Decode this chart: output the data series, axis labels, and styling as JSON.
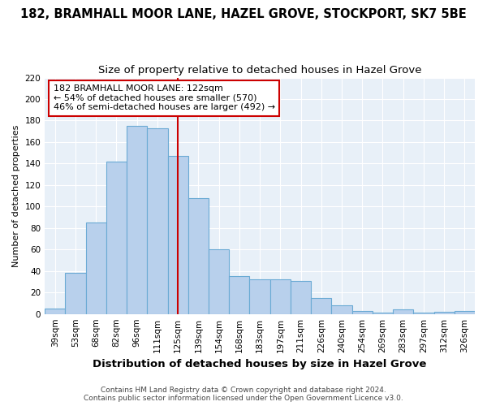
{
  "title": "182, BRAMHALL MOOR LANE, HAZEL GROVE, STOCKPORT, SK7 5BE",
  "subtitle": "Size of property relative to detached houses in Hazel Grove",
  "xlabel": "Distribution of detached houses by size in Hazel Grove",
  "ylabel": "Number of detached properties",
  "footer_line1": "Contains HM Land Registry data © Crown copyright and database right 2024.",
  "footer_line2": "Contains public sector information licensed under the Open Government Licence v3.0.",
  "categories": [
    "39sqm",
    "53sqm",
    "68sqm",
    "82sqm",
    "96sqm",
    "111sqm",
    "125sqm",
    "139sqm",
    "154sqm",
    "168sqm",
    "183sqm",
    "197sqm",
    "211sqm",
    "226sqm",
    "240sqm",
    "254sqm",
    "269sqm",
    "283sqm",
    "297sqm",
    "312sqm",
    "326sqm"
  ],
  "values": [
    5,
    38,
    85,
    142,
    175,
    173,
    147,
    108,
    60,
    35,
    32,
    32,
    31,
    15,
    8,
    3,
    1,
    4,
    1,
    2,
    3
  ],
  "bar_color": "#B8D0EC",
  "bar_edge_color": "#6AAAD4",
  "annotation_text": "182 BRAMHALL MOOR LANE: 122sqm\n← 54% of detached houses are smaller (570)\n46% of semi-detached houses are larger (492) →",
  "annotation_box_color": "#ffffff",
  "annotation_box_edge": "#cc0000",
  "vline_color": "#cc0000",
  "vline_x": 6.0,
  "ylim": [
    0,
    220
  ],
  "yticks": [
    0,
    20,
    40,
    60,
    80,
    100,
    120,
    140,
    160,
    180,
    200,
    220
  ],
  "bg_color": "#E8F0F8",
  "grid_color": "#ffffff",
  "fig_bg": "#ffffff",
  "title_fontsize": 10.5,
  "subtitle_fontsize": 9.5,
  "xlabel_fontsize": 9.5,
  "ylabel_fontsize": 8,
  "tick_fontsize": 7.5,
  "footer_fontsize": 6.5,
  "annot_fontsize": 8
}
